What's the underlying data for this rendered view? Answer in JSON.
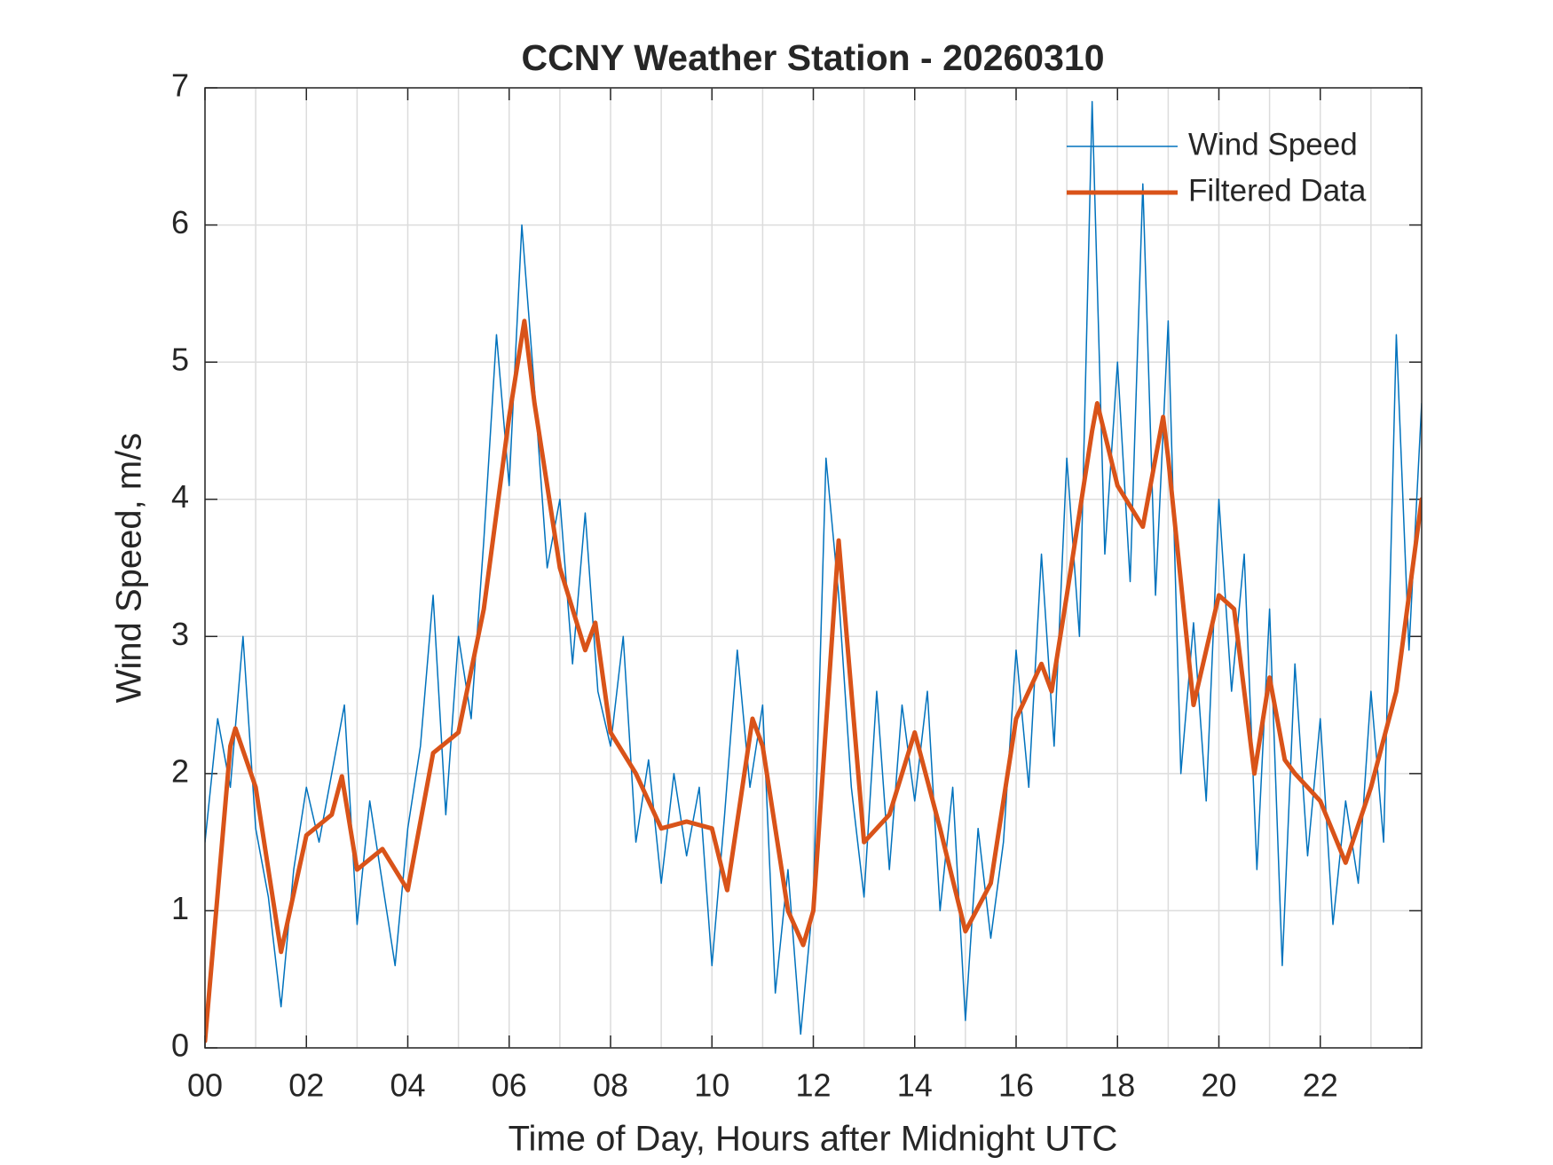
{
  "chart_data": {
    "type": "line",
    "title": "CCNY Weather Station - 20260310",
    "xlabel": "Time of Day, Hours after Midnight UTC",
    "ylabel": "Wind Speed, m/s",
    "xlim": [
      0,
      24
    ],
    "ylim": [
      0,
      7
    ],
    "xticks": [
      {
        "value": 0,
        "label": "00"
      },
      {
        "value": 2,
        "label": "02"
      },
      {
        "value": 4,
        "label": "04"
      },
      {
        "value": 6,
        "label": "06"
      },
      {
        "value": 8,
        "label": "08"
      },
      {
        "value": 10,
        "label": "10"
      },
      {
        "value": 12,
        "label": "12"
      },
      {
        "value": 14,
        "label": "14"
      },
      {
        "value": 16,
        "label": "16"
      },
      {
        "value": 18,
        "label": "18"
      },
      {
        "value": 20,
        "label": "20"
      },
      {
        "value": 22,
        "label": "22"
      }
    ],
    "x_minor_ticks": [
      1,
      3,
      5,
      7,
      9,
      11,
      13,
      15,
      17,
      19,
      21,
      23
    ],
    "yticks": [
      0,
      1,
      2,
      3,
      4,
      5,
      6,
      7
    ],
    "grid": true,
    "legend": "top-right",
    "series": [
      {
        "name": "Wind Speed",
        "color": "#0072BD",
        "line_width": 1.5,
        "x": [
          0,
          0.25,
          0.5,
          0.75,
          1,
          1.25,
          1.5,
          1.75,
          2,
          2.25,
          2.5,
          2.75,
          3,
          3.25,
          3.5,
          3.75,
          4,
          4.25,
          4.5,
          4.75,
          5,
          5.25,
          5.5,
          5.75,
          6,
          6.25,
          6.5,
          6.75,
          7,
          7.25,
          7.5,
          7.75,
          8,
          8.25,
          8.5,
          8.75,
          9,
          9.25,
          9.5,
          9.75,
          10,
          10.25,
          10.5,
          10.75,
          11,
          11.25,
          11.5,
          11.75,
          12,
          12.25,
          12.5,
          12.75,
          13,
          13.25,
          13.5,
          13.75,
          14,
          14.25,
          14.5,
          14.75,
          15,
          15.25,
          15.5,
          15.75,
          16,
          16.25,
          16.5,
          16.75,
          17,
          17.25,
          17.5,
          17.75,
          18,
          18.25,
          18.5,
          18.75,
          19,
          19.25,
          19.5,
          19.75,
          20,
          20.25,
          20.5,
          20.75,
          21,
          21.25,
          21.5,
          21.75,
          22,
          22.25,
          22.5,
          22.75,
          23,
          23.25,
          23.5,
          23.75,
          24
        ],
        "values": [
          1.5,
          2.4,
          1.9,
          3.0,
          1.6,
          1.1,
          0.3,
          1.3,
          1.9,
          1.5,
          2.0,
          2.5,
          0.9,
          1.8,
          1.2,
          0.6,
          1.6,
          2.2,
          3.3,
          1.7,
          3.0,
          2.4,
          3.7,
          5.2,
          4.1,
          6.0,
          4.8,
          3.5,
          4.0,
          2.8,
          3.9,
          2.6,
          2.2,
          3.0,
          1.5,
          2.1,
          1.2,
          2.0,
          1.4,
          1.9,
          0.6,
          1.7,
          2.9,
          1.9,
          2.5,
          0.4,
          1.3,
          0.1,
          1.1,
          4.3,
          3.3,
          1.9,
          1.1,
          2.6,
          1.3,
          2.5,
          1.8,
          2.6,
          1.0,
          1.9,
          0.2,
          1.6,
          0.8,
          1.5,
          2.9,
          1.9,
          3.6,
          2.2,
          4.3,
          3.0,
          6.9,
          3.6,
          5.0,
          3.4,
          6.3,
          3.3,
          5.3,
          2.0,
          3.1,
          1.8,
          4.0,
          2.6,
          3.6,
          1.3,
          3.2,
          0.6,
          2.8,
          1.4,
          2.4,
          0.9,
          1.8,
          1.2,
          2.6,
          1.5,
          5.2,
          2.9,
          4.7
        ]
      },
      {
        "name": "Filtered Data",
        "color": "#D95319",
        "line_width": 5,
        "x": [
          0,
          0.5,
          0.6,
          1.0,
          1.5,
          2.0,
          2.5,
          2.7,
          3.0,
          3.5,
          4.0,
          4.5,
          5.0,
          5.5,
          6.0,
          6.3,
          6.5,
          7.0,
          7.5,
          7.7,
          8.0,
          8.5,
          9.0,
          9.5,
          10.0,
          10.3,
          10.8,
          11.0,
          11.5,
          11.8,
          12.0,
          12.5,
          13.0,
          13.5,
          14.0,
          14.5,
          15.0,
          15.5,
          16.0,
          16.5,
          16.7,
          17.0,
          17.5,
          17.6,
          18.0,
          18.5,
          18.9,
          19.0,
          19.5,
          20.0,
          20.3,
          20.7,
          21.0,
          21.3,
          21.5,
          22.0,
          22.5,
          23.0,
          23.5,
          24.0
        ],
        "values": [
          0.05,
          2.2,
          2.33,
          1.9,
          0.7,
          1.55,
          1.7,
          1.98,
          1.3,
          1.45,
          1.15,
          2.15,
          2.3,
          3.2,
          4.6,
          5.3,
          4.7,
          3.5,
          2.9,
          3.1,
          2.3,
          2.0,
          1.6,
          1.65,
          1.6,
          1.15,
          2.4,
          2.2,
          1.0,
          0.75,
          1.0,
          3.7,
          1.5,
          1.7,
          2.3,
          1.6,
          0.85,
          1.2,
          2.4,
          2.8,
          2.6,
          3.3,
          4.5,
          4.7,
          4.1,
          3.8,
          4.6,
          4.3,
          2.5,
          3.3,
          3.2,
          2.0,
          2.7,
          2.1,
          2.0,
          1.8,
          1.35,
          1.9,
          2.6,
          4.0
        ]
      }
    ]
  }
}
